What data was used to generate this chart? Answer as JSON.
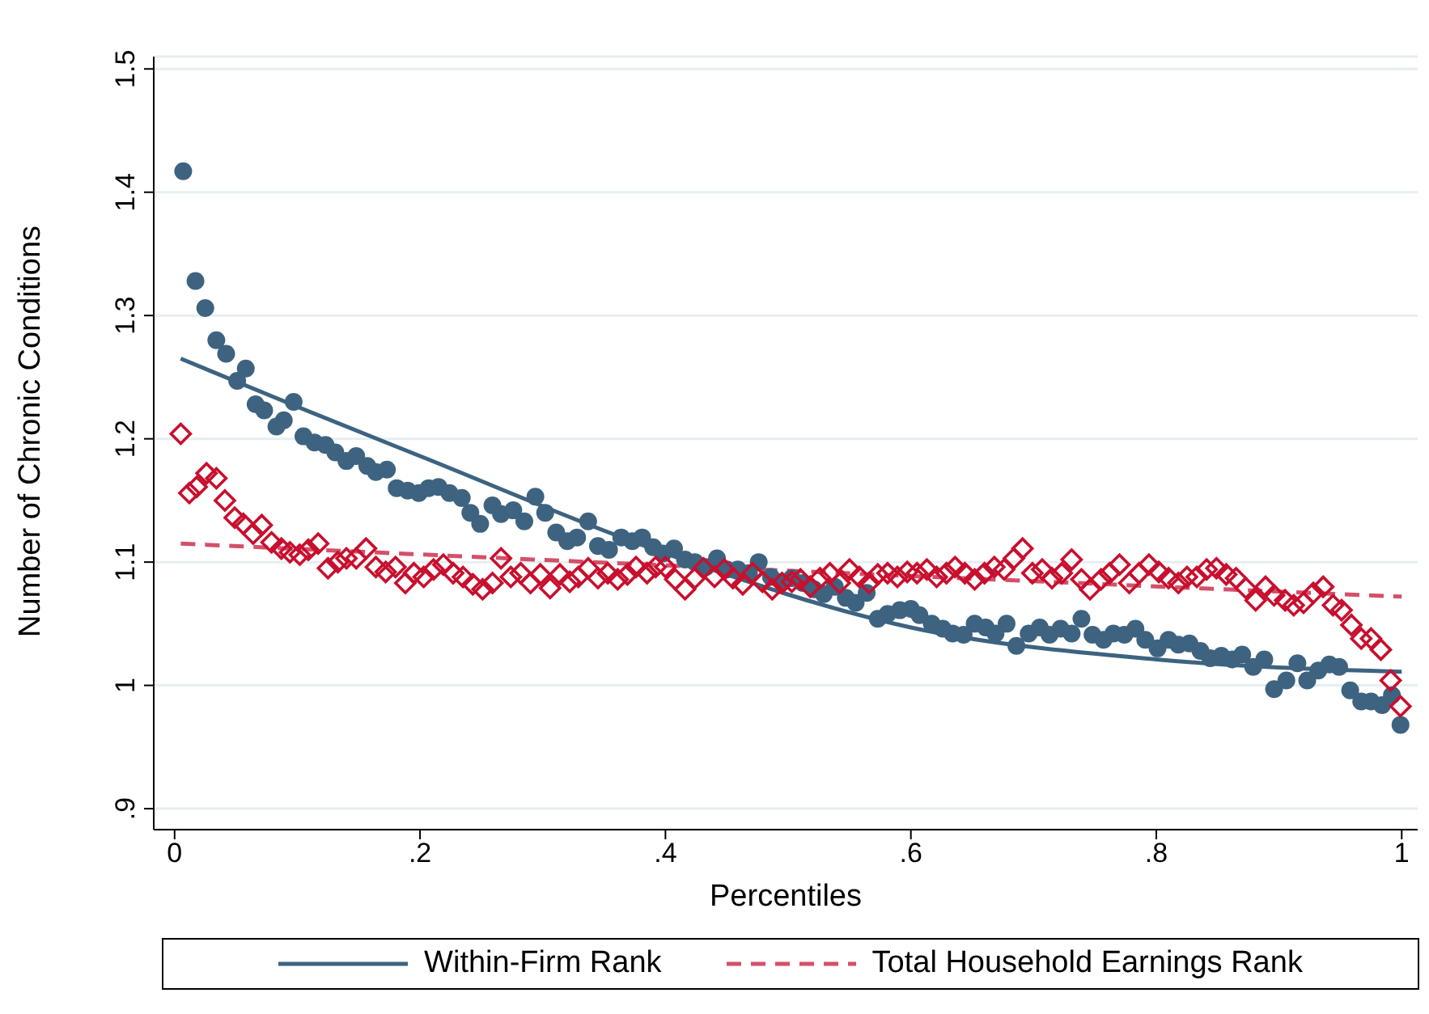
{
  "chart_data": {
    "type": "scatter",
    "xlabel": "Percentiles",
    "ylabel": "Number of Chronic Conditions",
    "xlim": [
      -0.017,
      1.013
    ],
    "ylim": [
      0.883,
      1.51
    ],
    "xticks": [
      {
        "value": 0,
        "label": "0"
      },
      {
        "value": 0.2,
        "label": ".2"
      },
      {
        "value": 0.4,
        "label": ".4"
      },
      {
        "value": 0.6,
        "label": ".6"
      },
      {
        "value": 0.8,
        "label": ".8"
      },
      {
        "value": 1,
        "label": "1"
      }
    ],
    "yticks": [
      {
        "value": 0.9,
        "label": ".9"
      },
      1,
      1.1,
      1.2,
      1.3,
      1.4,
      1.5
    ],
    "grid": "y",
    "legend": "bottom",
    "series": [
      {
        "marker": "circle",
        "color": "#3d6380",
        "x": [
          0.007,
          0.017,
          0.025,
          0.034,
          0.042,
          0.051,
          0.058,
          0.066,
          0.073,
          0.083,
          0.089,
          0.097,
          0.105,
          0.114,
          0.123,
          0.131,
          0.14,
          0.148,
          0.157,
          0.164,
          0.173,
          0.181,
          0.19,
          0.199,
          0.207,
          0.215,
          0.224,
          0.234,
          0.241,
          0.249,
          0.259,
          0.266,
          0.276,
          0.285,
          0.294,
          0.302,
          0.311,
          0.32,
          0.328,
          0.337,
          0.345,
          0.354,
          0.364,
          0.373,
          0.381,
          0.39,
          0.398,
          0.407,
          0.416,
          0.424,
          0.433,
          0.442,
          0.45,
          0.459,
          0.468,
          0.476,
          0.486,
          0.495,
          0.503,
          0.512,
          0.521,
          0.529,
          0.538,
          0.547,
          0.555,
          0.564,
          0.573,
          0.581,
          0.591,
          0.6,
          0.607,
          0.617,
          0.626,
          0.634,
          0.643,
          0.652,
          0.661,
          0.669,
          0.678,
          0.686,
          0.696,
          0.705,
          0.713,
          0.722,
          0.731,
          0.739,
          0.748,
          0.757,
          0.765,
          0.774,
          0.783,
          0.791,
          0.801,
          0.81,
          0.818,
          0.827,
          0.836,
          0.844,
          0.853,
          0.862,
          0.87,
          0.879,
          0.888,
          0.896,
          0.906,
          0.915,
          0.923,
          0.932,
          0.941,
          0.949,
          0.958,
          0.967,
          0.975,
          0.984,
          0.992,
          0.999
        ],
        "values": [
          1.417,
          1.328,
          1.306,
          1.28,
          1.269,
          1.247,
          1.257,
          1.228,
          1.223,
          1.21,
          1.215,
          1.23,
          1.202,
          1.197,
          1.195,
          1.189,
          1.182,
          1.186,
          1.178,
          1.173,
          1.175,
          1.16,
          1.158,
          1.156,
          1.16,
          1.161,
          1.156,
          1.152,
          1.14,
          1.131,
          1.146,
          1.139,
          1.142,
          1.133,
          1.153,
          1.14,
          1.124,
          1.117,
          1.12,
          1.133,
          1.113,
          1.11,
          1.12,
          1.117,
          1.12,
          1.112,
          1.107,
          1.111,
          1.102,
          1.1,
          1.096,
          1.103,
          1.094,
          1.094,
          1.091,
          1.1,
          1.088,
          1.084,
          1.087,
          1.083,
          1.078,
          1.074,
          1.08,
          1.071,
          1.067,
          1.075,
          1.054,
          1.058,
          1.061,
          1.062,
          1.057,
          1.05,
          1.046,
          1.042,
          1.041,
          1.05,
          1.047,
          1.042,
          1.05,
          1.032,
          1.042,
          1.047,
          1.041,
          1.046,
          1.042,
          1.054,
          1.041,
          1.037,
          1.042,
          1.041,
          1.046,
          1.037,
          1.03,
          1.037,
          1.033,
          1.034,
          1.028,
          1.022,
          1.024,
          1.021,
          1.025,
          1.015,
          1.021,
          0.997,
          1.004,
          1.018,
          1.004,
          1.012,
          1.017,
          1.015,
          0.996,
          0.987,
          0.987,
          0.984,
          0.992,
          0.968
        ]
      },
      {
        "marker": "diamond",
        "color": "#c8102e",
        "x": [
          0.005,
          0.012,
          0.018,
          0.026,
          0.034,
          0.041,
          0.049,
          0.056,
          0.064,
          0.071,
          0.079,
          0.087,
          0.094,
          0.102,
          0.109,
          0.117,
          0.125,
          0.133,
          0.14,
          0.148,
          0.156,
          0.164,
          0.172,
          0.18,
          0.188,
          0.195,
          0.203,
          0.211,
          0.219,
          0.227,
          0.235,
          0.243,
          0.251,
          0.259,
          0.266,
          0.274,
          0.282,
          0.29,
          0.298,
          0.306,
          0.314,
          0.322,
          0.329,
          0.337,
          0.345,
          0.353,
          0.361,
          0.369,
          0.376,
          0.385,
          0.392,
          0.4,
          0.408,
          0.416,
          0.424,
          0.431,
          0.44,
          0.448,
          0.455,
          0.463,
          0.471,
          0.479,
          0.487,
          0.495,
          0.503,
          0.51,
          0.518,
          0.526,
          0.534,
          0.542,
          0.55,
          0.558,
          0.566,
          0.573,
          0.581,
          0.589,
          0.597,
          0.605,
          0.613,
          0.621,
          0.629,
          0.636,
          0.644,
          0.652,
          0.66,
          0.668,
          0.676,
          0.684,
          0.691,
          0.699,
          0.707,
          0.715,
          0.723,
          0.731,
          0.739,
          0.746,
          0.755,
          0.762,
          0.77,
          0.778,
          0.786,
          0.794,
          0.802,
          0.81,
          0.818,
          0.825,
          0.833,
          0.841,
          0.849,
          0.857,
          0.865,
          0.873,
          0.881,
          0.889,
          0.896,
          0.905,
          0.912,
          0.92,
          0.928,
          0.936,
          0.944,
          0.951,
          0.959,
          0.967,
          0.975,
          0.983,
          0.991,
          0.999
        ],
        "values": [
          1.204,
          1.156,
          1.161,
          1.172,
          1.168,
          1.15,
          1.136,
          1.131,
          1.123,
          1.13,
          1.116,
          1.111,
          1.108,
          1.106,
          1.11,
          1.115,
          1.095,
          1.1,
          1.103,
          1.103,
          1.111,
          1.096,
          1.092,
          1.096,
          1.083,
          1.091,
          1.088,
          1.094,
          1.098,
          1.091,
          1.088,
          1.082,
          1.078,
          1.083,
          1.103,
          1.088,
          1.091,
          1.083,
          1.09,
          1.079,
          1.09,
          1.084,
          1.088,
          1.095,
          1.087,
          1.091,
          1.086,
          1.09,
          1.096,
          1.091,
          1.096,
          1.096,
          1.086,
          1.078,
          1.087,
          1.095,
          1.088,
          1.094,
          1.087,
          1.082,
          1.091,
          1.084,
          1.078,
          1.083,
          1.084,
          1.086,
          1.08,
          1.087,
          1.091,
          1.083,
          1.094,
          1.088,
          1.083,
          1.09,
          1.091,
          1.088,
          1.092,
          1.091,
          1.094,
          1.088,
          1.091,
          1.096,
          1.091,
          1.086,
          1.091,
          1.096,
          1.094,
          1.103,
          1.111,
          1.091,
          1.094,
          1.087,
          1.091,
          1.102,
          1.086,
          1.078,
          1.086,
          1.091,
          1.098,
          1.083,
          1.091,
          1.098,
          1.092,
          1.087,
          1.083,
          1.088,
          1.088,
          1.094,
          1.095,
          1.09,
          1.087,
          1.079,
          1.069,
          1.08,
          1.073,
          1.069,
          1.065,
          1.067,
          1.075,
          1.08,
          1.065,
          1.061,
          1.049,
          1.038,
          1.038,
          1.029,
          1.004,
          0.983
        ]
      },
      {
        "type": "line",
        "name": "Within-Firm Rank",
        "color": "#3d6380",
        "line_style": "solid",
        "x": [
          0.005,
          0.1,
          0.2,
          0.4,
          0.6,
          0.8,
          1
        ],
        "values": [
          1.265,
          1.226,
          1.186,
          1.107,
          1.047,
          1.021,
          1.011
        ]
      },
      {
        "type": "line",
        "name": "Total Household Earnings Rank",
        "color": "#d4506a",
        "line_style": "dashed",
        "x": [
          0.005,
          0.5,
          1
        ],
        "values": [
          1.115,
          1.093,
          1.072
        ]
      }
    ]
  }
}
